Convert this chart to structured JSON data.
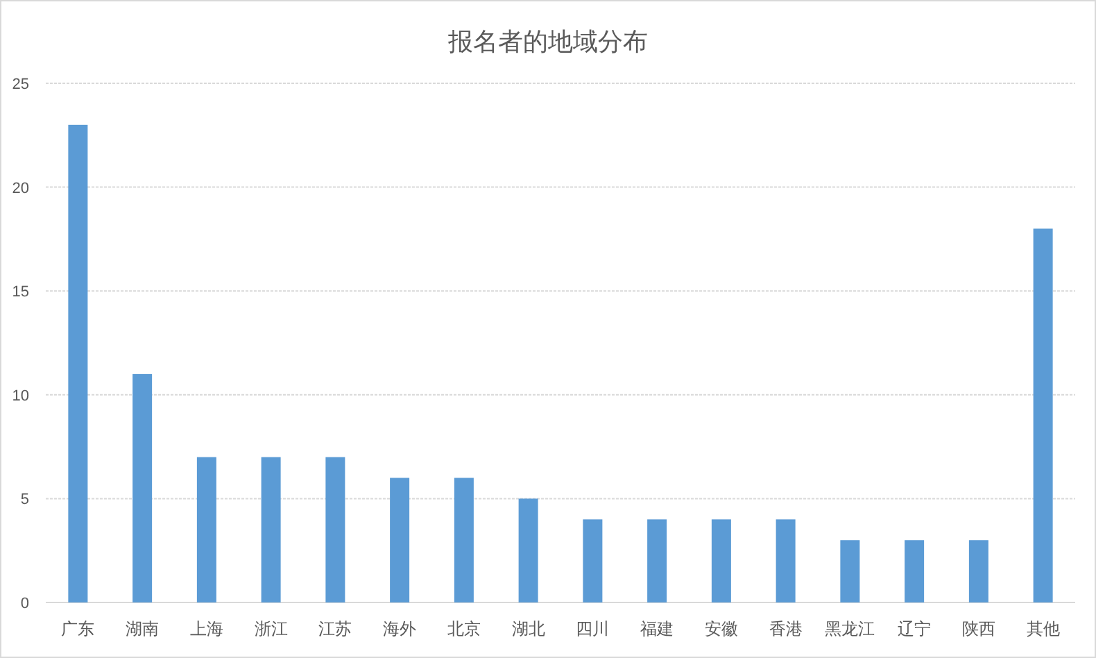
{
  "chart_data": {
    "type": "bar",
    "title": "报名者的地域分布",
    "categories": [
      "广东",
      "湖南",
      "上海",
      "浙江",
      "江苏",
      "海外",
      "北京",
      "湖北",
      "四川",
      "福建",
      "安徽",
      "香港",
      "黑龙江",
      "辽宁",
      "陕西",
      "其他"
    ],
    "values": [
      23,
      11,
      7,
      7,
      7,
      6,
      6,
      5,
      4,
      4,
      4,
      4,
      3,
      3,
      3,
      18
    ],
    "color": "#5b9bd5",
    "ylim": [
      0,
      25
    ],
    "yticks": [
      0,
      5,
      10,
      15,
      20,
      25
    ],
    "grid": "y"
  }
}
